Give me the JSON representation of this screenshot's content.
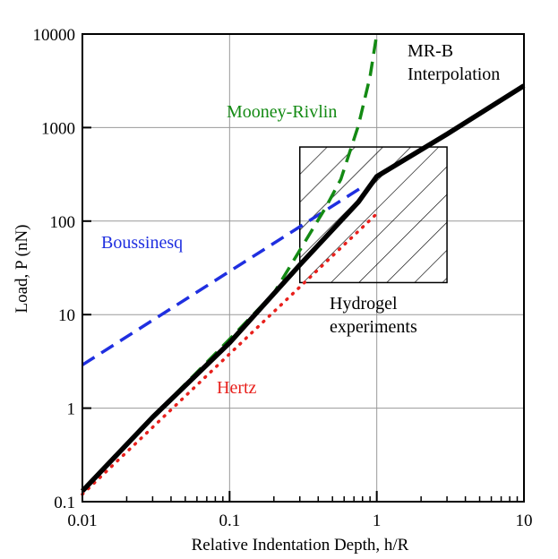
{
  "chart_data": {
    "type": "line",
    "log_x": true,
    "log_y": true,
    "grid": true,
    "xlabel": "Relative Indentation Depth, h/R",
    "ylabel": "Load, P (nN)",
    "xlim": [
      0.01,
      10
    ],
    "ylim": [
      0.1,
      10000
    ],
    "xticks": [
      0.01,
      0.1,
      1,
      10
    ],
    "yticks": [
      0.1,
      1,
      10,
      100,
      1000,
      10000
    ],
    "xminorticks": [
      0.02,
      0.03,
      0.04,
      0.05,
      0.06,
      0.07,
      0.08,
      0.09,
      0.2,
      0.3,
      0.4,
      0.5,
      0.6,
      0.7,
      0.8,
      0.9,
      2,
      3,
      4,
      5,
      6,
      7,
      8,
      9
    ],
    "series": [
      {
        "name": "Hertz",
        "color": "#e8201c",
        "style": "dotted",
        "x": [
          0.01,
          0.1,
          1
        ],
        "values": [
          0.12,
          3.8,
          120
        ]
      },
      {
        "name": "Boussinesq",
        "color": "#1f2fe0",
        "style": "dashed",
        "x": [
          0.01,
          0.8
        ],
        "values": [
          2.9,
          232
        ]
      },
      {
        "name": "Mooney-Rivlin",
        "color": "#138a13",
        "style": "dashed",
        "x": [
          0.01,
          0.03,
          0.105,
          0.2,
          0.325,
          0.45,
          0.57,
          0.75,
          0.9,
          1
        ],
        "values": [
          0.13,
          0.8,
          5.9,
          17,
          60,
          140,
          280,
          1050,
          3500,
          10000
        ]
      },
      {
        "name": "MR-B Interpolation",
        "color": "#000000",
        "style": "solid",
        "x": [
          0.01,
          0.03,
          0.1,
          0.3,
          0.75,
          1,
          3,
          10
        ],
        "values": [
          0.13,
          0.8,
          5,
          34,
          160,
          300,
          850,
          2800
        ]
      }
    ],
    "region": {
      "label": "Hydrogel experiments",
      "x": [
        0.3,
        3
      ],
      "values": [
        22,
        620
      ]
    }
  }
}
